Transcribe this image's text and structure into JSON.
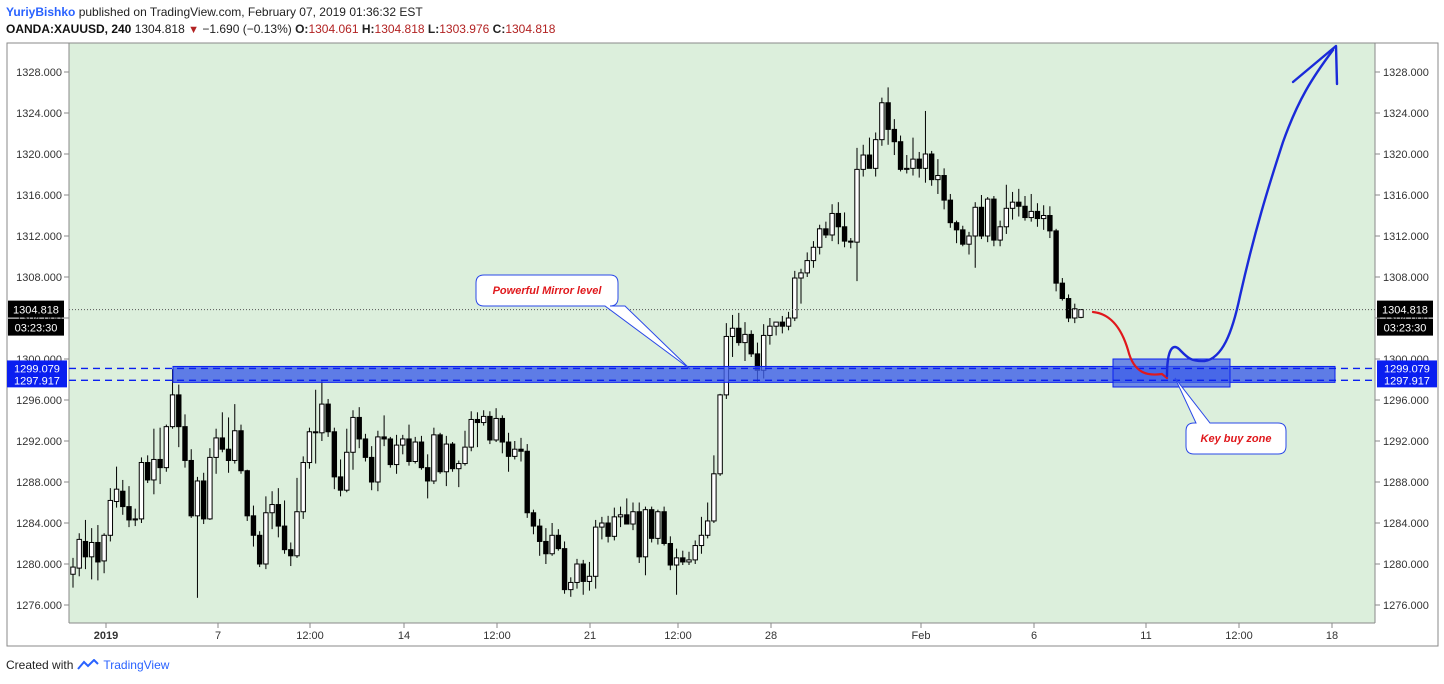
{
  "header": {
    "author": "YuriyBishko",
    "published_text": "published on TradingView.com, February 07, 2019 01:36:32 EST",
    "symbol": "OANDA:XAUUSD, 240",
    "last": "1304.818",
    "change": "−1.690 (−0.13%)",
    "o_label": "O:",
    "o_value": "1304.061",
    "h_label": "H:",
    "h_value": "1304.818",
    "l_label": "L:",
    "l_value": "1303.976",
    "c_label": "C:",
    "c_value": "1304.818"
  },
  "footer": {
    "created_with": "Created with",
    "brand": "TradingView"
  },
  "colors": {
    "plot_bg": "#dcefdc",
    "zone_fill": "#3f5fe8",
    "zone_dash": "#0a1ff0",
    "sketch_blue": "#1a2ad9",
    "sketch_red": "#e0181c",
    "label_blue_bg": "#0a1ff0",
    "price_label_bg": "#000000",
    "candle": "#000000"
  },
  "chart_data": {
    "type": "candlestick",
    "symbol": "OANDA:XAUUSD",
    "interval": "240",
    "ylim": [
      1274,
      1331
    ],
    "y_ticks": [
      1276,
      1280,
      1284,
      1288,
      1292,
      1296,
      1300,
      1304,
      1308,
      1312,
      1316,
      1320,
      1324,
      1328
    ],
    "y_tick_labels": [
      "1276.000",
      "1280.000",
      "1284.000",
      "1288.000",
      "1292.000",
      "1296.000",
      "1300.000",
      "1304.000",
      "1308.000",
      "1312.000",
      "1316.000",
      "1320.000",
      "1324.000",
      "1328.000"
    ],
    "x_tick_labels": [
      "2019",
      "7",
      "12:00",
      "14",
      "12:00",
      "21",
      "12:00",
      "28",
      "Feb",
      "6",
      "11",
      "12:00",
      "18"
    ],
    "current_price": {
      "value": 1304.818,
      "label": "1304.818",
      "countdown": "03:23:30"
    },
    "zone": {
      "upper": 1299.079,
      "lower": 1297.917,
      "upper_label": "1299.079",
      "lower_label": "1297.917"
    },
    "annotations": [
      {
        "text": "Powerful Mirror level",
        "points_to": 1299.0
      },
      {
        "text": "Key buy zone",
        "points_to": 1297.9
      }
    ],
    "candles": [
      {
        "o": 1279.0,
        "h": 1280.6,
        "l": 1277.7,
        "c": 1279.7
      },
      {
        "o": 1279.6,
        "h": 1283.0,
        "l": 1278.8,
        "c": 1282.4
      },
      {
        "o": 1282.2,
        "h": 1284.3,
        "l": 1279.5,
        "c": 1280.7
      },
      {
        "o": 1280.7,
        "h": 1283.5,
        "l": 1278.5,
        "c": 1282.1
      },
      {
        "o": 1282.1,
        "h": 1283.8,
        "l": 1278.4,
        "c": 1280.2
      },
      {
        "o": 1280.3,
        "h": 1283.0,
        "l": 1279.1,
        "c": 1282.8
      },
      {
        "o": 1282.8,
        "h": 1287.4,
        "l": 1282.2,
        "c": 1286.2
      },
      {
        "o": 1286.1,
        "h": 1289.5,
        "l": 1285.5,
        "c": 1287.3
      },
      {
        "o": 1287.1,
        "h": 1288.2,
        "l": 1284.8,
        "c": 1285.6
      },
      {
        "o": 1285.6,
        "h": 1287.6,
        "l": 1283.6,
        "c": 1284.3
      },
      {
        "o": 1284.3,
        "h": 1285.4,
        "l": 1283.7,
        "c": 1284.4
      },
      {
        "o": 1284.4,
        "h": 1290.4,
        "l": 1284.0,
        "c": 1289.9
      },
      {
        "o": 1289.9,
        "h": 1290.6,
        "l": 1287.9,
        "c": 1288.2
      },
      {
        "o": 1288.2,
        "h": 1293.2,
        "l": 1286.8,
        "c": 1290.2
      },
      {
        "o": 1290.2,
        "h": 1293.3,
        "l": 1287.8,
        "c": 1289.4
      },
      {
        "o": 1289.4,
        "h": 1293.6,
        "l": 1289.0,
        "c": 1293.4
      },
      {
        "o": 1293.4,
        "h": 1299.0,
        "l": 1293.2,
        "c": 1296.5
      },
      {
        "o": 1296.5,
        "h": 1297.5,
        "l": 1291.4,
        "c": 1293.4
      },
      {
        "o": 1293.4,
        "h": 1294.6,
        "l": 1289.4,
        "c": 1290.1
      },
      {
        "o": 1290.1,
        "h": 1291.2,
        "l": 1284.5,
        "c": 1284.7
      },
      {
        "o": 1284.7,
        "h": 1288.5,
        "l": 1276.7,
        "c": 1288.1
      },
      {
        "o": 1288.1,
        "h": 1288.9,
        "l": 1283.9,
        "c": 1284.4
      },
      {
        "o": 1284.4,
        "h": 1291.3,
        "l": 1284.3,
        "c": 1290.4
      },
      {
        "o": 1290.4,
        "h": 1293.2,
        "l": 1288.8,
        "c": 1292.3
      },
      {
        "o": 1292.3,
        "h": 1294.8,
        "l": 1290.9,
        "c": 1291.2
      },
      {
        "o": 1291.2,
        "h": 1294.3,
        "l": 1288.9,
        "c": 1290.1
      },
      {
        "o": 1290.1,
        "h": 1295.6,
        "l": 1289.8,
        "c": 1293.0
      },
      {
        "o": 1293.0,
        "h": 1293.6,
        "l": 1288.8,
        "c": 1289.1
      },
      {
        "o": 1289.1,
        "h": 1289.2,
        "l": 1284.2,
        "c": 1284.7
      },
      {
        "o": 1284.7,
        "h": 1285.7,
        "l": 1281.7,
        "c": 1282.8
      },
      {
        "o": 1282.8,
        "h": 1283.2,
        "l": 1279.7,
        "c": 1280.0
      },
      {
        "o": 1280.0,
        "h": 1286.6,
        "l": 1279.5,
        "c": 1285.0
      },
      {
        "o": 1285.0,
        "h": 1287.1,
        "l": 1283.4,
        "c": 1285.8
      },
      {
        "o": 1285.8,
        "h": 1287.4,
        "l": 1282.6,
        "c": 1283.7
      },
      {
        "o": 1283.7,
        "h": 1286.2,
        "l": 1281.0,
        "c": 1281.4
      },
      {
        "o": 1281.4,
        "h": 1282.1,
        "l": 1279.8,
        "c": 1280.8
      },
      {
        "o": 1280.8,
        "h": 1288.4,
        "l": 1280.6,
        "c": 1285.1
      },
      {
        "o": 1285.1,
        "h": 1290.5,
        "l": 1284.4,
        "c": 1289.9
      },
      {
        "o": 1289.9,
        "h": 1293.3,
        "l": 1289.3,
        "c": 1292.9
      },
      {
        "o": 1292.9,
        "h": 1297.0,
        "l": 1289.8,
        "c": 1292.8
      },
      {
        "o": 1292.8,
        "h": 1297.9,
        "l": 1292.0,
        "c": 1295.6
      },
      {
        "o": 1295.6,
        "h": 1296.1,
        "l": 1292.4,
        "c": 1292.9
      },
      {
        "o": 1292.9,
        "h": 1293.3,
        "l": 1287.3,
        "c": 1288.5
      },
      {
        "o": 1288.5,
        "h": 1290.2,
        "l": 1286.6,
        "c": 1287.2
      },
      {
        "o": 1287.2,
        "h": 1293.2,
        "l": 1287.0,
        "c": 1290.9
      },
      {
        "o": 1290.9,
        "h": 1295.0,
        "l": 1289.2,
        "c": 1294.3
      },
      {
        "o": 1294.3,
        "h": 1295.3,
        "l": 1291.3,
        "c": 1292.2
      },
      {
        "o": 1292.2,
        "h": 1292.7,
        "l": 1290.0,
        "c": 1290.4
      },
      {
        "o": 1290.4,
        "h": 1291.5,
        "l": 1287.2,
        "c": 1288.0
      },
      {
        "o": 1288.0,
        "h": 1293.0,
        "l": 1287.1,
        "c": 1292.4
      },
      {
        "o": 1292.4,
        "h": 1294.5,
        "l": 1291.5,
        "c": 1292.2
      },
      {
        "o": 1292.2,
        "h": 1292.4,
        "l": 1289.4,
        "c": 1289.7
      },
      {
        "o": 1289.7,
        "h": 1292.6,
        "l": 1288.8,
        "c": 1291.6
      },
      {
        "o": 1291.6,
        "h": 1292.6,
        "l": 1290.7,
        "c": 1292.2
      },
      {
        "o": 1292.2,
        "h": 1293.6,
        "l": 1289.6,
        "c": 1290.0
      },
      {
        "o": 1290.0,
        "h": 1292.4,
        "l": 1289.8,
        "c": 1291.9
      },
      {
        "o": 1291.9,
        "h": 1292.5,
        "l": 1289.2,
        "c": 1289.4
      },
      {
        "o": 1289.4,
        "h": 1290.7,
        "l": 1286.4,
        "c": 1288.1
      },
      {
        "o": 1288.1,
        "h": 1293.3,
        "l": 1287.8,
        "c": 1292.6
      },
      {
        "o": 1292.6,
        "h": 1292.8,
        "l": 1288.8,
        "c": 1289.0
      },
      {
        "o": 1289.0,
        "h": 1292.5,
        "l": 1287.6,
        "c": 1291.7
      },
      {
        "o": 1291.7,
        "h": 1291.9,
        "l": 1289.0,
        "c": 1289.3
      },
      {
        "o": 1289.3,
        "h": 1290.1,
        "l": 1287.5,
        "c": 1289.8
      },
      {
        "o": 1289.8,
        "h": 1293.0,
        "l": 1289.6,
        "c": 1291.4
      },
      {
        "o": 1291.4,
        "h": 1294.9,
        "l": 1291.0,
        "c": 1294.1
      },
      {
        "o": 1294.1,
        "h": 1294.8,
        "l": 1291.4,
        "c": 1293.8
      },
      {
        "o": 1293.8,
        "h": 1295.0,
        "l": 1293.5,
        "c": 1294.4
      },
      {
        "o": 1294.4,
        "h": 1294.9,
        "l": 1291.7,
        "c": 1292.1
      },
      {
        "o": 1292.1,
        "h": 1295.2,
        "l": 1291.9,
        "c": 1294.2
      },
      {
        "o": 1294.2,
        "h": 1294.5,
        "l": 1290.8,
        "c": 1291.9
      },
      {
        "o": 1291.9,
        "h": 1292.8,
        "l": 1289.0,
        "c": 1290.5
      },
      {
        "o": 1290.5,
        "h": 1292.0,
        "l": 1290.2,
        "c": 1291.2
      },
      {
        "o": 1291.2,
        "h": 1292.3,
        "l": 1290.0,
        "c": 1291.0
      },
      {
        "o": 1291.0,
        "h": 1291.7,
        "l": 1284.5,
        "c": 1285.0
      },
      {
        "o": 1285.0,
        "h": 1285.3,
        "l": 1282.9,
        "c": 1283.7
      },
      {
        "o": 1283.7,
        "h": 1284.4,
        "l": 1280.8,
        "c": 1282.2
      },
      {
        "o": 1282.2,
        "h": 1283.5,
        "l": 1280.0,
        "c": 1281.0
      },
      {
        "o": 1281.0,
        "h": 1284.0,
        "l": 1280.8,
        "c": 1282.8
      },
      {
        "o": 1282.8,
        "h": 1283.4,
        "l": 1281.3,
        "c": 1281.5
      },
      {
        "o": 1281.5,
        "h": 1282.2,
        "l": 1277.1,
        "c": 1277.5
      },
      {
        "o": 1277.5,
        "h": 1278.7,
        "l": 1276.8,
        "c": 1278.2
      },
      {
        "o": 1278.2,
        "h": 1280.5,
        "l": 1277.6,
        "c": 1280.0
      },
      {
        "o": 1280.0,
        "h": 1280.4,
        "l": 1277.0,
        "c": 1278.3
      },
      {
        "o": 1278.3,
        "h": 1280.2,
        "l": 1277.4,
        "c": 1278.8
      },
      {
        "o": 1278.8,
        "h": 1284.3,
        "l": 1277.6,
        "c": 1283.6
      },
      {
        "o": 1283.6,
        "h": 1284.6,
        "l": 1282.4,
        "c": 1284.0
      },
      {
        "o": 1284.0,
        "h": 1284.7,
        "l": 1282.1,
        "c": 1282.7
      },
      {
        "o": 1282.7,
        "h": 1285.5,
        "l": 1282.3,
        "c": 1284.6
      },
      {
        "o": 1284.6,
        "h": 1285.6,
        "l": 1283.6,
        "c": 1284.8
      },
      {
        "o": 1284.8,
        "h": 1286.4,
        "l": 1283.9,
        "c": 1283.9
      },
      {
        "o": 1283.9,
        "h": 1286.0,
        "l": 1283.3,
        "c": 1285.1
      },
      {
        "o": 1285.1,
        "h": 1286.0,
        "l": 1280.1,
        "c": 1280.7
      },
      {
        "o": 1280.7,
        "h": 1285.6,
        "l": 1278.9,
        "c": 1285.3
      },
      {
        "o": 1285.3,
        "h": 1285.6,
        "l": 1282.1,
        "c": 1282.5
      },
      {
        "o": 1282.5,
        "h": 1285.3,
        "l": 1281.9,
        "c": 1285.1
      },
      {
        "o": 1285.1,
        "h": 1285.6,
        "l": 1281.8,
        "c": 1282.0
      },
      {
        "o": 1282.0,
        "h": 1282.7,
        "l": 1279.4,
        "c": 1279.9
      },
      {
        "o": 1279.9,
        "h": 1281.5,
        "l": 1277.0,
        "c": 1280.6
      },
      {
        "o": 1280.6,
        "h": 1281.3,
        "l": 1279.9,
        "c": 1280.2
      },
      {
        "o": 1280.2,
        "h": 1281.2,
        "l": 1279.9,
        "c": 1280.4
      },
      {
        "o": 1280.4,
        "h": 1282.3,
        "l": 1280.0,
        "c": 1281.8
      },
      {
        "o": 1281.8,
        "h": 1284.6,
        "l": 1281.0,
        "c": 1282.8
      },
      {
        "o": 1282.8,
        "h": 1286.0,
        "l": 1282.5,
        "c": 1284.2
      },
      {
        "o": 1284.2,
        "h": 1290.6,
        "l": 1284.0,
        "c": 1288.8
      },
      {
        "o": 1288.8,
        "h": 1296.6,
        "l": 1288.6,
        "c": 1296.5
      },
      {
        "o": 1296.5,
        "h": 1303.5,
        "l": 1296.1,
        "c": 1302.2
      },
      {
        "o": 1302.2,
        "h": 1304.3,
        "l": 1300.2,
        "c": 1303.0
      },
      {
        "o": 1303.0,
        "h": 1304.5,
        "l": 1301.3,
        "c": 1301.6
      },
      {
        "o": 1301.6,
        "h": 1303.6,
        "l": 1299.8,
        "c": 1302.4
      },
      {
        "o": 1302.4,
        "h": 1302.8,
        "l": 1300.2,
        "c": 1300.5
      },
      {
        "o": 1300.5,
        "h": 1301.6,
        "l": 1297.8,
        "c": 1298.9
      },
      {
        "o": 1298.9,
        "h": 1303.4,
        "l": 1298.1,
        "c": 1302.3
      },
      {
        "o": 1302.3,
        "h": 1304.0,
        "l": 1301.4,
        "c": 1303.2
      },
      {
        "o": 1303.2,
        "h": 1303.6,
        "l": 1302.3,
        "c": 1303.6
      },
      {
        "o": 1303.6,
        "h": 1304.2,
        "l": 1302.5,
        "c": 1303.2
      },
      {
        "o": 1303.2,
        "h": 1304.6,
        "l": 1302.8,
        "c": 1304.0
      },
      {
        "o": 1304.0,
        "h": 1308.6,
        "l": 1303.7,
        "c": 1307.9
      },
      {
        "o": 1307.9,
        "h": 1308.8,
        "l": 1305.4,
        "c": 1308.4
      },
      {
        "o": 1308.4,
        "h": 1310.4,
        "l": 1308.0,
        "c": 1309.6
      },
      {
        "o": 1309.6,
        "h": 1311.5,
        "l": 1308.9,
        "c": 1310.9
      },
      {
        "o": 1310.9,
        "h": 1313.1,
        "l": 1310.2,
        "c": 1312.7
      },
      {
        "o": 1312.7,
        "h": 1313.4,
        "l": 1311.8,
        "c": 1312.1
      },
      {
        "o": 1312.1,
        "h": 1315.1,
        "l": 1311.5,
        "c": 1314.2
      },
      {
        "o": 1314.2,
        "h": 1315.3,
        "l": 1311.2,
        "c": 1312.9
      },
      {
        "o": 1312.9,
        "h": 1314.3,
        "l": 1310.9,
        "c": 1311.5
      },
      {
        "o": 1311.5,
        "h": 1311.8,
        "l": 1310.8,
        "c": 1311.4
      },
      {
        "o": 1311.4,
        "h": 1320.6,
        "l": 1307.6,
        "c": 1318.5
      },
      {
        "o": 1318.5,
        "h": 1320.9,
        "l": 1317.8,
        "c": 1319.9
      },
      {
        "o": 1319.9,
        "h": 1321.6,
        "l": 1318.6,
        "c": 1318.6
      },
      {
        "o": 1318.6,
        "h": 1322.1,
        "l": 1317.8,
        "c": 1321.4
      },
      {
        "o": 1321.4,
        "h": 1325.5,
        "l": 1320.8,
        "c": 1325.0
      },
      {
        "o": 1325.0,
        "h": 1326.5,
        "l": 1320.9,
        "c": 1322.4
      },
      {
        "o": 1322.4,
        "h": 1323.4,
        "l": 1319.9,
        "c": 1321.2
      },
      {
        "o": 1321.2,
        "h": 1321.8,
        "l": 1318.3,
        "c": 1318.5
      },
      {
        "o": 1318.5,
        "h": 1319.9,
        "l": 1318.1,
        "c": 1318.6
      },
      {
        "o": 1318.6,
        "h": 1321.6,
        "l": 1317.9,
        "c": 1319.5
      },
      {
        "o": 1319.5,
        "h": 1320.2,
        "l": 1317.7,
        "c": 1318.6
      },
      {
        "o": 1318.6,
        "h": 1324.2,
        "l": 1317.2,
        "c": 1320.0
      },
      {
        "o": 1320.0,
        "h": 1320.3,
        "l": 1316.9,
        "c": 1317.5
      },
      {
        "o": 1317.5,
        "h": 1319.5,
        "l": 1316.1,
        "c": 1317.9
      },
      {
        "o": 1317.9,
        "h": 1318.6,
        "l": 1314.6,
        "c": 1315.5
      },
      {
        "o": 1315.5,
        "h": 1316.1,
        "l": 1312.8,
        "c": 1313.3
      },
      {
        "o": 1313.3,
        "h": 1313.5,
        "l": 1311.3,
        "c": 1312.6
      },
      {
        "o": 1312.6,
        "h": 1313.0,
        "l": 1311.0,
        "c": 1311.2
      },
      {
        "o": 1311.2,
        "h": 1312.4,
        "l": 1310.2,
        "c": 1312.0
      },
      {
        "o": 1312.0,
        "h": 1315.3,
        "l": 1308.9,
        "c": 1314.8
      },
      {
        "o": 1314.8,
        "h": 1316.0,
        "l": 1311.7,
        "c": 1312.0
      },
      {
        "o": 1312.0,
        "h": 1315.8,
        "l": 1311.4,
        "c": 1315.6
      },
      {
        "o": 1315.6,
        "h": 1315.9,
        "l": 1311.0,
        "c": 1311.6
      },
      {
        "o": 1311.6,
        "h": 1313.5,
        "l": 1311.0,
        "c": 1312.9
      },
      {
        "o": 1312.9,
        "h": 1317.0,
        "l": 1312.2,
        "c": 1314.7
      },
      {
        "o": 1314.7,
        "h": 1316.3,
        "l": 1313.6,
        "c": 1315.3
      },
      {
        "o": 1315.3,
        "h": 1316.6,
        "l": 1313.9,
        "c": 1314.9
      },
      {
        "o": 1314.9,
        "h": 1315.9,
        "l": 1313.5,
        "c": 1313.8
      },
      {
        "o": 1313.8,
        "h": 1316.1,
        "l": 1313.4,
        "c": 1314.4
      },
      {
        "o": 1314.4,
        "h": 1315.2,
        "l": 1312.9,
        "c": 1313.7
      },
      {
        "o": 1313.7,
        "h": 1315.0,
        "l": 1312.6,
        "c": 1314.0
      },
      {
        "o": 1314.0,
        "h": 1314.9,
        "l": 1311.8,
        "c": 1312.5
      },
      {
        "o": 1312.5,
        "h": 1312.7,
        "l": 1306.6,
        "c": 1307.4
      },
      {
        "o": 1307.4,
        "h": 1307.9,
        "l": 1305.7,
        "c": 1305.9
      },
      {
        "o": 1305.9,
        "h": 1306.3,
        "l": 1303.6,
        "c": 1304.0
      },
      {
        "o": 1304.0,
        "h": 1305.4,
        "l": 1303.5,
        "c": 1304.9
      },
      {
        "o": 1304.061,
        "h": 1304.818,
        "l": 1303.976,
        "c": 1304.818
      }
    ]
  }
}
